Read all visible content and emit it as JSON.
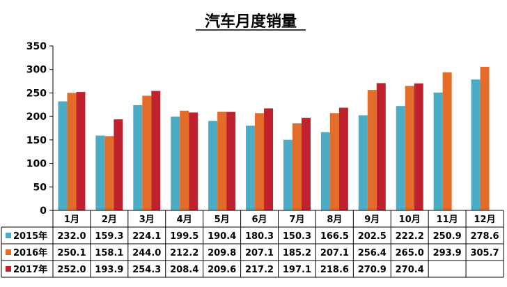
{
  "chart_data": {
    "type": "bar",
    "title": "汽车月度销量",
    "categories": [
      "1月",
      "2月",
      "3月",
      "4月",
      "5月",
      "6月",
      "7月",
      "8月",
      "9月",
      "10月",
      "11月",
      "12月"
    ],
    "ylim": [
      0,
      350
    ],
    "yticks": [
      0,
      50,
      100,
      150,
      200,
      250,
      300,
      350
    ],
    "grid": false,
    "legend": "data-table",
    "series": [
      {
        "name": "2015年",
        "color": "#4BACC6",
        "values": [
          232.0,
          159.3,
          224.1,
          199.5,
          190.4,
          180.3,
          150.3,
          166.5,
          202.5,
          222.2,
          250.9,
          278.6
        ],
        "labels": [
          "232.0",
          "159.3",
          "224.1",
          "199.5",
          "190.4",
          "180.3",
          "150.3",
          "166.5",
          "202.5",
          "222.2",
          "250.9",
          "278.6"
        ]
      },
      {
        "name": "2016年",
        "color": "#E36C2A",
        "values": [
          250.1,
          158.1,
          244.0,
          212.2,
          209.8,
          207.1,
          185.2,
          207.1,
          256.4,
          265.0,
          293.9,
          305.7
        ],
        "labels": [
          "250.1",
          "158.1",
          "244.0",
          "212.2",
          "209.8",
          "207.1",
          "185.2",
          "207.1",
          "256.4",
          "265.0",
          "293.9",
          "305.7"
        ]
      },
      {
        "name": "2017年",
        "color": "#C0212E",
        "values": [
          252.0,
          193.9,
          254.3,
          208.4,
          209.6,
          217.2,
          197.1,
          218.6,
          270.9,
          270.4,
          null,
          null
        ],
        "labels": [
          "252.0",
          "193.9",
          "254.3",
          "208.4",
          "209.6",
          "217.2",
          "197.1",
          "218.6",
          "270.9",
          "270.4",
          "",
          ""
        ]
      }
    ]
  }
}
